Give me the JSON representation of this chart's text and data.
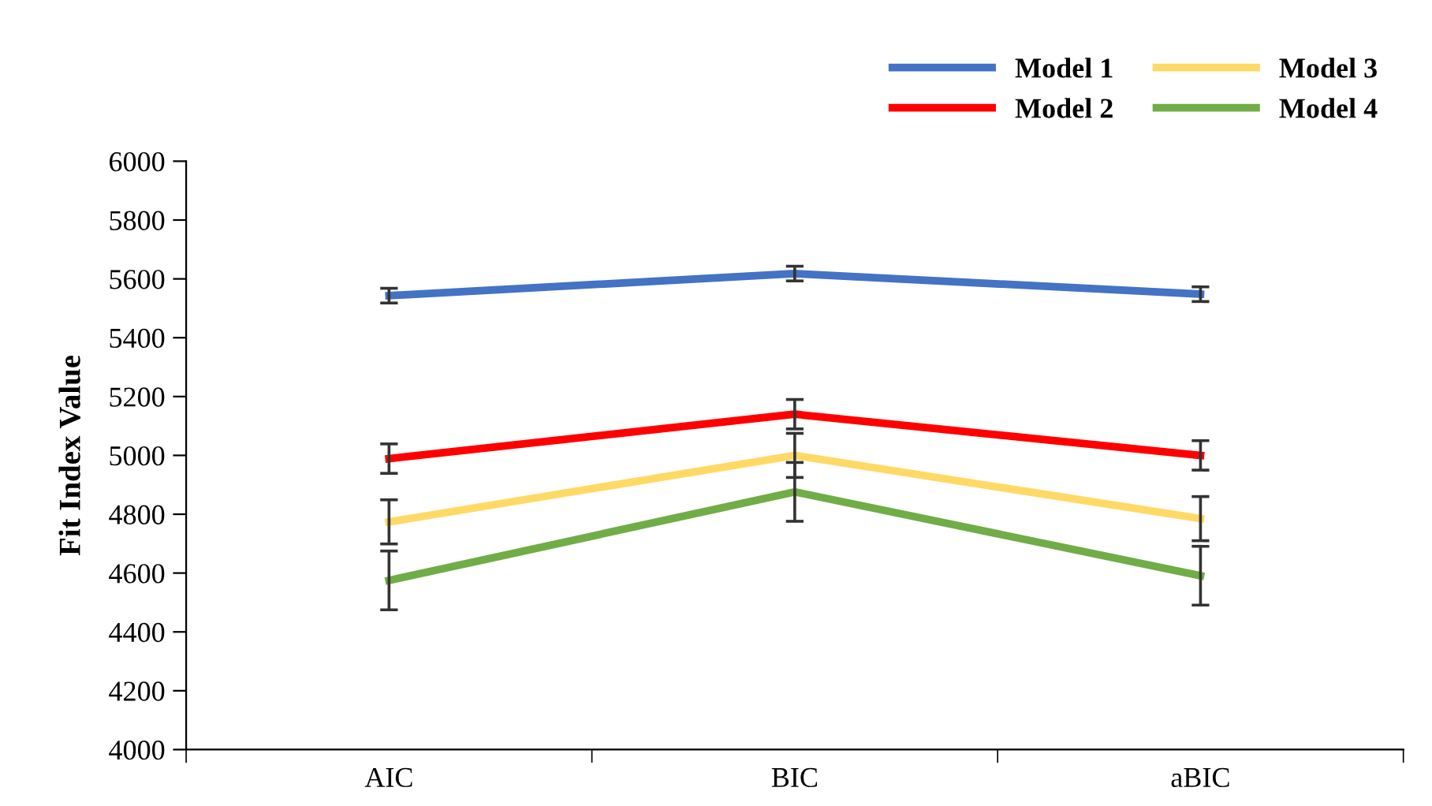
{
  "chart_data": {
    "type": "line",
    "ylabel": "Fit Index Value",
    "categories": [
      "AIC",
      "BIC",
      "aBIC"
    ],
    "series": [
      {
        "name": "Model 1",
        "color": "#4472c4",
        "values": [
          5543,
          5618,
          5548
        ],
        "errors": [
          25,
          25,
          25
        ]
      },
      {
        "name": "Model 2",
        "color": "#ff0000",
        "values": [
          4989,
          5140,
          5000
        ],
        "errors": [
          50,
          50,
          50
        ]
      },
      {
        "name": "Model 3",
        "color": "#ffd966",
        "values": [
          4774,
          5000,
          4785
        ],
        "errors": [
          75,
          75,
          75
        ]
      },
      {
        "name": "Model 4",
        "color": "#70ad47",
        "values": [
          4575,
          4876,
          4591
        ],
        "errors": [
          100,
          100,
          100
        ]
      }
    ],
    "ylim": [
      4000,
      6000
    ],
    "yticks": [
      4000,
      4200,
      4400,
      4600,
      4800,
      5000,
      5200,
      5400,
      5600,
      5800,
      6000
    ],
    "grid": false,
    "legend": "top right",
    "marker": "none",
    "line_style": "solid"
  }
}
